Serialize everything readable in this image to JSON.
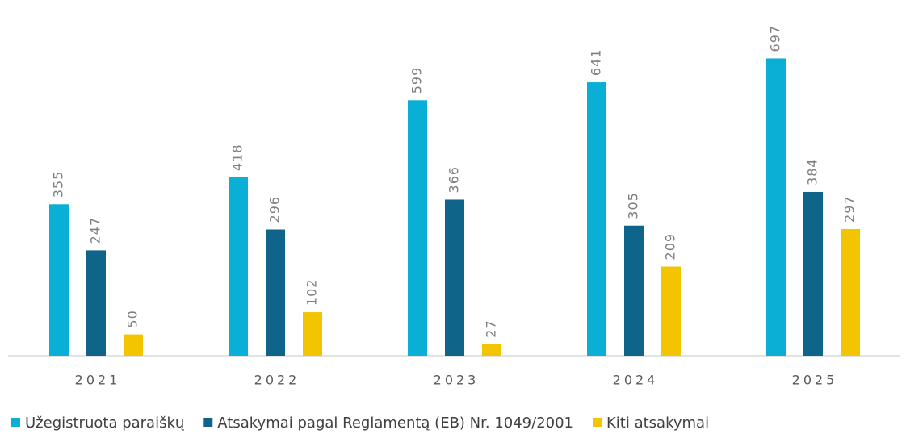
{
  "chart_data": {
    "type": "bar",
    "categories": [
      "2021",
      "2022",
      "2023",
      "2024",
      "2025"
    ],
    "series": [
      {
        "name": "Užegistruota paraiškų",
        "color": "#0aafd6",
        "values": [
          355,
          418,
          599,
          641,
          697
        ]
      },
      {
        "name": "Atsakymai pagal Reglamentą (EB) Nr. 1049/2001",
        "color": "#0e6589",
        "values": [
          247,
          296,
          366,
          305,
          384
        ]
      },
      {
        "name": "Kiti atsakymai",
        "color": "#f2c500",
        "values": [
          50,
          102,
          27,
          209,
          297
        ]
      }
    ],
    "ylim": [
      0,
      800
    ],
    "legend": "bottom"
  }
}
